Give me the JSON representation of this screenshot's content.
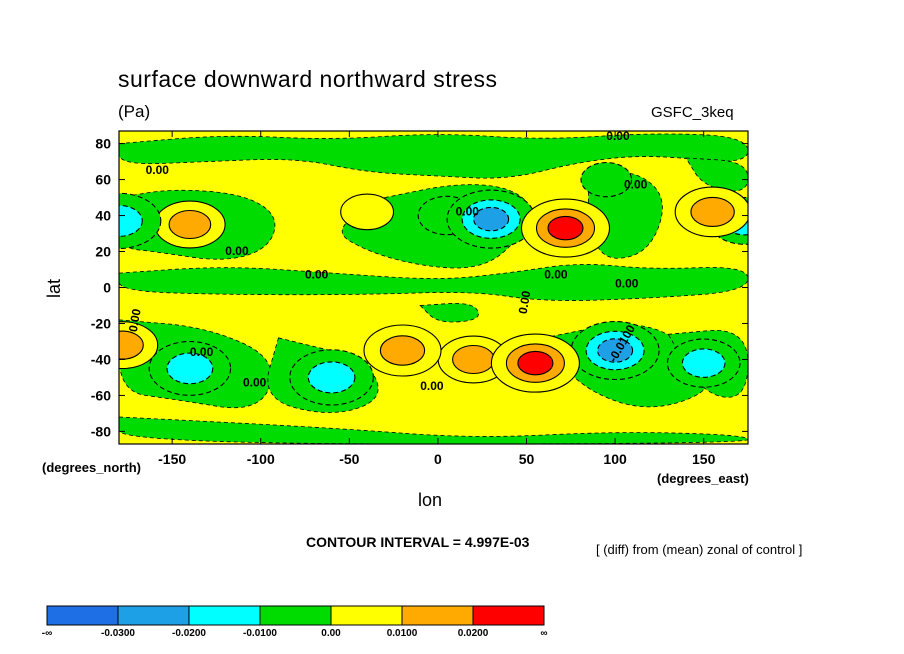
{
  "chart_data": {
    "type": "heatmap",
    "title": "surface downward northward stress",
    "units": "(Pa)",
    "model_label": "GSFC_3keq",
    "xlabel": "lon",
    "ylabel": "lat",
    "x_units_label": "(degrees_east)",
    "y_units_label": "(degrees_north)",
    "xlim": [
      -180,
      175
    ],
    "ylim": [
      -87,
      87
    ],
    "x_ticks": [
      -150,
      -100,
      -50,
      0,
      50,
      100,
      150
    ],
    "y_ticks": [
      80,
      60,
      40,
      20,
      0,
      -20,
      -40,
      -60,
      -80
    ],
    "contour_interval_text": "CONTOUR INTERVAL = 4.997E-03",
    "note": "[ (diff) from (mean) zonal of control ]",
    "contour_labels": [
      "0.00",
      "0.00",
      "0.00",
      "0.00",
      "0.00",
      "0.00",
      "0.00",
      "0.00",
      "0.00",
      "0.00",
      "0.00",
      "0.00",
      "0.00",
      "-0.0100"
    ],
    "levels": [
      {
        "label": "-∞",
        "color": "#1e6fe6"
      },
      {
        "label": "-0.0300",
        "color": "#1ea0e6"
      },
      {
        "label": "-0.0200",
        "color": "#00ffff"
      },
      {
        "label": "-0.0100",
        "color": "#00dc00"
      },
      {
        "label": "0.00",
        "color": "#ffff00"
      },
      {
        "label": "0.0100",
        "color": "#ffaa00"
      },
      {
        "label": "0.0200",
        "color": "#ff0000"
      },
      {
        "label": "∞",
        "color": ""
      }
    ],
    "features": [
      {
        "lon": -40,
        "lat": 42,
        "value": 0.004
      },
      {
        "lon": 5,
        "lat": 40,
        "value": -0.006
      },
      {
        "lon": 30,
        "lat": 38,
        "value": -0.021
      },
      {
        "lon": 72,
        "lat": 33,
        "value": 0.028
      },
      {
        "lon": 155,
        "lat": 42,
        "value": 0.014
      },
      {
        "lon": -140,
        "lat": 35,
        "value": 0.012
      },
      {
        "lon": -180,
        "lat": 37,
        "value": -0.018
      },
      {
        "lon": 173,
        "lat": 37,
        "value": -0.012
      },
      {
        "lon": 95,
        "lat": 60,
        "value": -0.003
      },
      {
        "lon": 20,
        "lat": -40,
        "value": 0.012
      },
      {
        "lon": 55,
        "lat": -42,
        "value": 0.027
      },
      {
        "lon": 100,
        "lat": -35,
        "value": -0.026
      },
      {
        "lon": -20,
        "lat": -35,
        "value": 0.015
      },
      {
        "lon": -60,
        "lat": -50,
        "value": -0.018
      },
      {
        "lon": -140,
        "lat": -45,
        "value": -0.017
      },
      {
        "lon": 150,
        "lat": -42,
        "value": -0.013
      },
      {
        "lon": -178,
        "lat": -32,
        "value": 0.012
      }
    ]
  }
}
